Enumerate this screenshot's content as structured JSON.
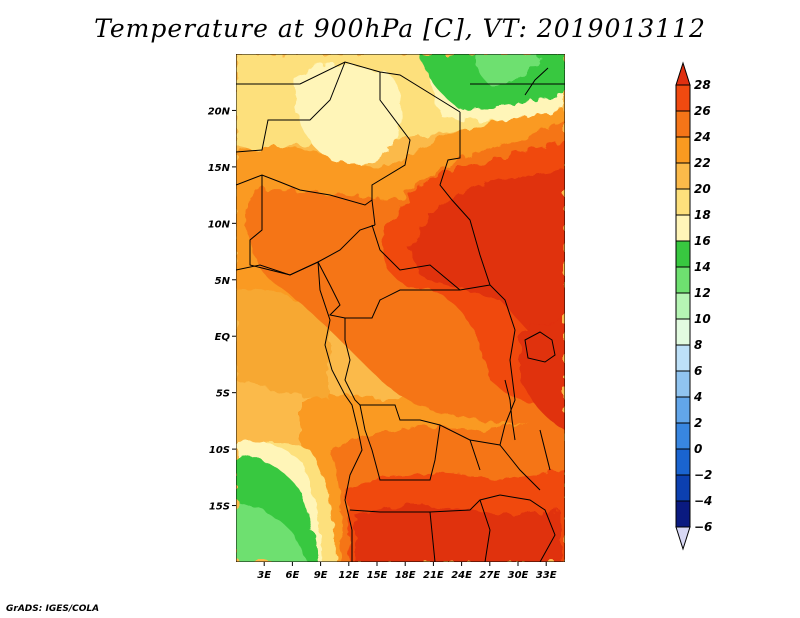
{
  "title": "Temperature at 900hPa [C], VT: 2019013112",
  "credit": "GrADS: IGES/COLA",
  "map": {
    "lon_range": [
      0,
      35
    ],
    "lat_range": [
      -20,
      25
    ],
    "lon_ticks": [
      {
        "value": 3,
        "label": "3E"
      },
      {
        "value": 6,
        "label": "6E"
      },
      {
        "value": 9,
        "label": "9E"
      },
      {
        "value": 12,
        "label": "12E"
      },
      {
        "value": 15,
        "label": "15E"
      },
      {
        "value": 18,
        "label": "18E"
      },
      {
        "value": 21,
        "label": "21E"
      },
      {
        "value": 24,
        "label": "24E"
      },
      {
        "value": 27,
        "label": "27E"
      },
      {
        "value": 30,
        "label": "30E"
      },
      {
        "value": 33,
        "label": "33E"
      }
    ],
    "lat_ticks": [
      {
        "value": 20,
        "label": "20N"
      },
      {
        "value": 15,
        "label": "15N"
      },
      {
        "value": 10,
        "label": "10N"
      },
      {
        "value": 5,
        "label": "5N"
      },
      {
        "value": 0,
        "label": "EQ"
      },
      {
        "value": -5,
        "label": "5S"
      },
      {
        "value": -10,
        "label": "10S"
      },
      {
        "value": -15,
        "label": "15S"
      }
    ]
  },
  "colorbar": {
    "levels": [
      28,
      26,
      24,
      22,
      20,
      18,
      16,
      14,
      12,
      10,
      8,
      6,
      4,
      2,
      0,
      -2,
      -4,
      -6
    ],
    "labels": [
      "28",
      "26",
      "24",
      "22",
      "20",
      "18",
      "16",
      "14",
      "12",
      "10",
      "8",
      "6",
      "4",
      "2",
      "0",
      "−2",
      "−4",
      "−6"
    ],
    "colors_top_to_bottom": [
      "#e03010",
      "#f04a10",
      "#f57518",
      "#fa9a20",
      "#fbba4a",
      "#fde07c",
      "#fff5b8",
      "#38c840",
      "#6ee070",
      "#b6f5b4",
      "#e2fbe0",
      "#bde0f8",
      "#90c4f0",
      "#62a6ea",
      "#3886e0",
      "#1a64d0",
      "#0c40b0",
      "#0a1a80",
      "#d8d8f4"
    ]
  }
}
